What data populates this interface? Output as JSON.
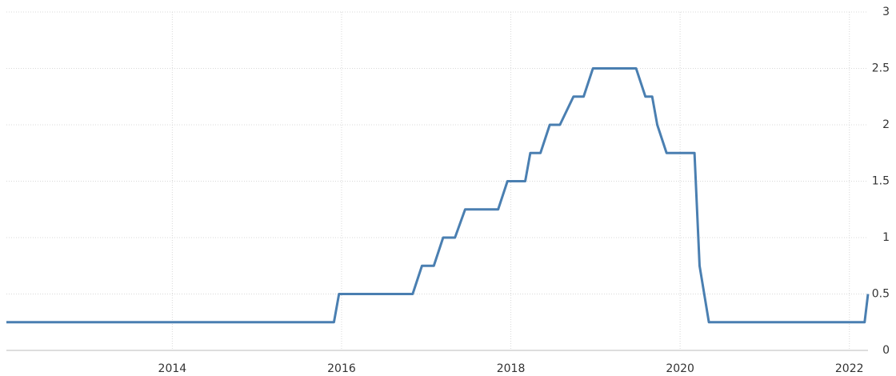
{
  "chart_data": {
    "type": "line",
    "x": [
      2012.04,
      2015.91,
      2015.97,
      2016.84,
      2016.95,
      2017.09,
      2017.2,
      2017.34,
      2017.46,
      2017.85,
      2017.96,
      2018.17,
      2018.23,
      2018.35,
      2018.46,
      2018.58,
      2018.74,
      2018.86,
      2018.97,
      2019.48,
      2019.59,
      2019.67,
      2019.73,
      2019.84,
      2020.17,
      2020.23,
      2020.34,
      2022.18,
      2022.22
    ],
    "series": [
      {
        "color": "#4a7fb1",
        "values": [
          0.25,
          0.25,
          0.5,
          0.5,
          0.75,
          0.75,
          1,
          1,
          1.25,
          1.25,
          1.5,
          1.5,
          1.75,
          1.75,
          2,
          2,
          2.25,
          2.25,
          2.5,
          2.5,
          2.25,
          2.25,
          2,
          1.75,
          1.75,
          0.75,
          0.25,
          0.25,
          0.5
        ]
      }
    ],
    "xlim": [
      2012.04,
      2022.22
    ],
    "xticks": [
      2014,
      2016,
      2018,
      2020,
      2022
    ],
    "ylim": [
      0,
      3
    ],
    "yticks": [
      0,
      0.5,
      1,
      1.5,
      2,
      2.5,
      3
    ],
    "grid": true
  }
}
